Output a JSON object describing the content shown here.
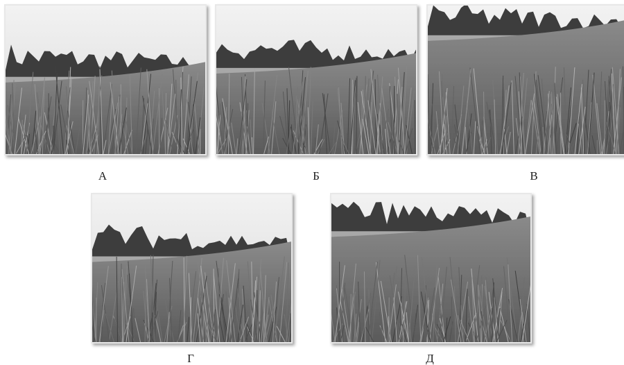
{
  "figure": {
    "panels": [
      {
        "label": "А"
      },
      {
        "label": "Б"
      },
      {
        "label": "В"
      },
      {
        "label": "Г"
      },
      {
        "label": "Д"
      }
    ]
  }
}
